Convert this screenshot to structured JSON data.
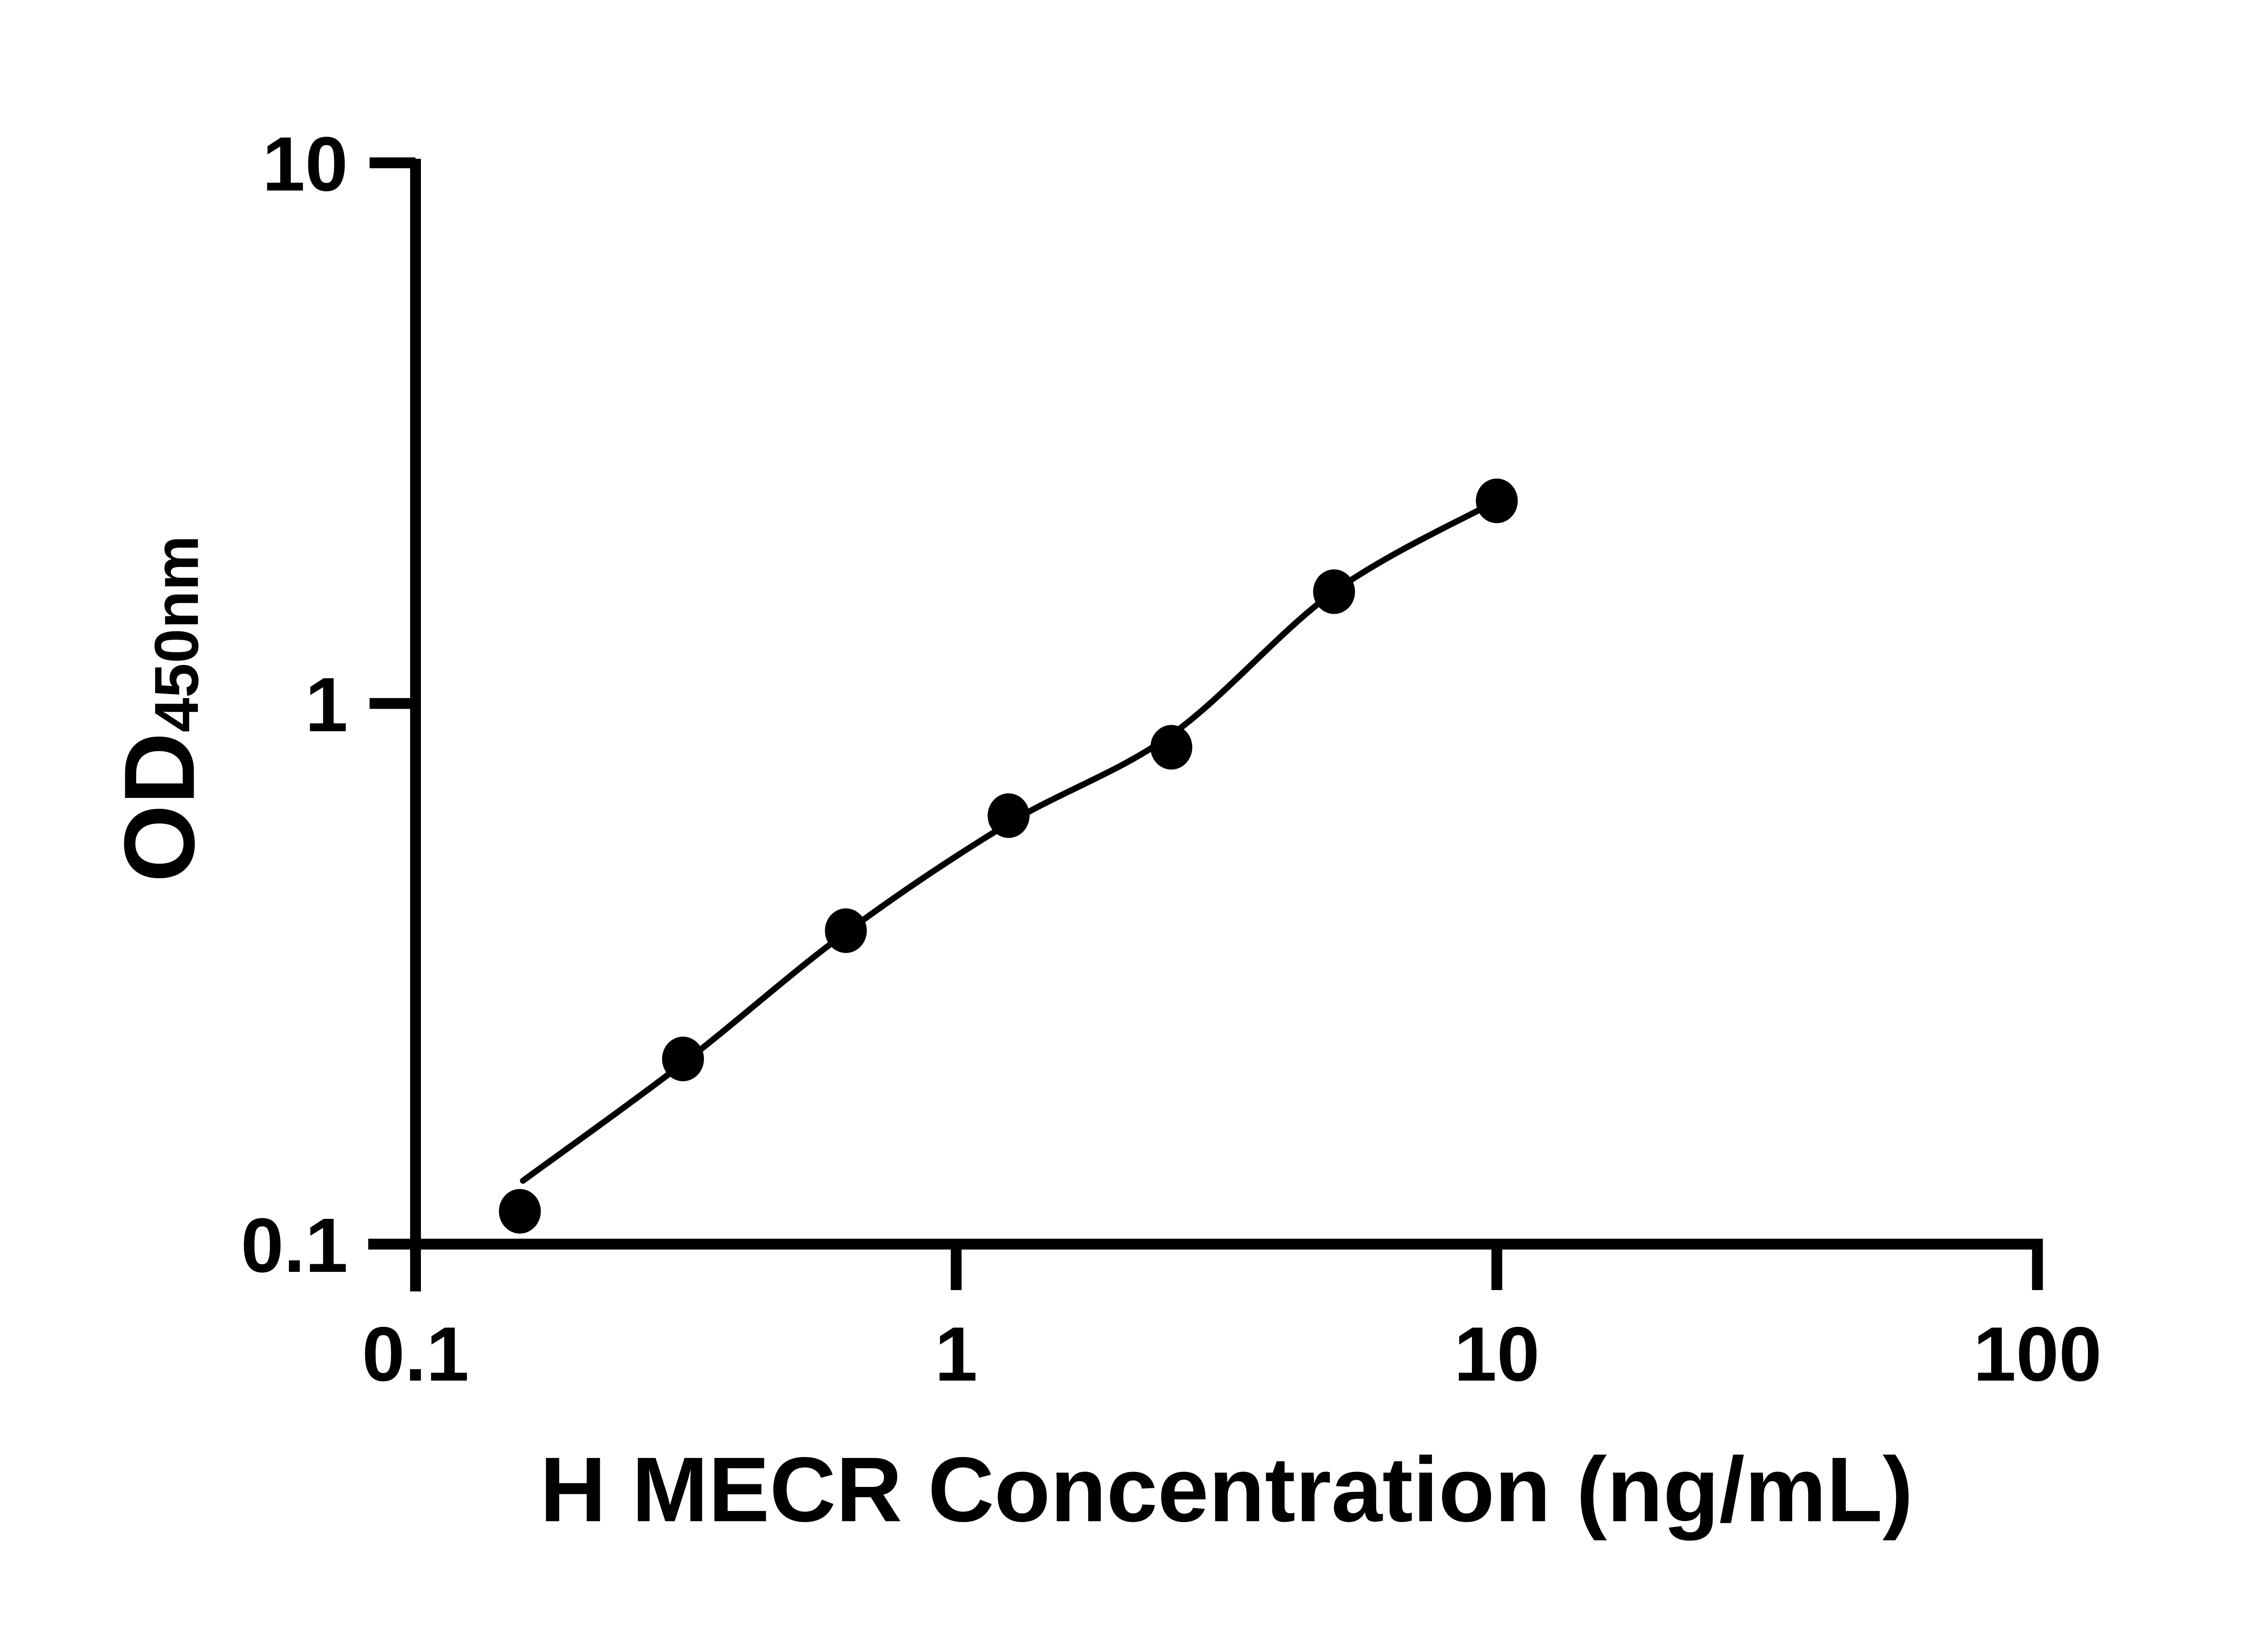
{
  "figure": {
    "background": "#ffffff",
    "ink_color": "#000000"
  },
  "chart_data": {
    "type": "scatter",
    "subtype": "log-log standard curve with fitted line",
    "title": "",
    "xlabel": "H MECR Concentration (ng/mL)",
    "ylabel_main": "OD",
    "ylabel_sub": "450nm",
    "x_scale": "log",
    "y_scale": "log",
    "xlim": [
      0.1,
      100
    ],
    "ylim": [
      0.1,
      10
    ],
    "x_ticks": [
      0.1,
      1,
      10,
      100
    ],
    "x_tick_labels": [
      "0.1",
      "1",
      "10",
      "100"
    ],
    "y_ticks": [
      0.1,
      1,
      10
    ],
    "y_tick_labels": [
      "0.1",
      "1",
      "10"
    ],
    "grid": false,
    "legend": false,
    "series": [
      {
        "name": "standard-points",
        "type": "points",
        "marker": "filled-circle",
        "color": "#000000",
        "x": [
          0.156,
          0.3125,
          0.625,
          1.25,
          2.5,
          5,
          10
        ],
        "y": [
          0.115,
          0.22,
          0.38,
          0.62,
          0.83,
          1.61,
          2.37
        ]
      },
      {
        "name": "fit-curve",
        "type": "line",
        "color": "#000000",
        "x": [
          0.158,
          0.3125,
          0.625,
          1.25,
          2.5,
          5,
          10
        ],
        "y": [
          0.131,
          0.216,
          0.377,
          0.6,
          0.875,
          1.61,
          2.37
        ]
      }
    ]
  }
}
